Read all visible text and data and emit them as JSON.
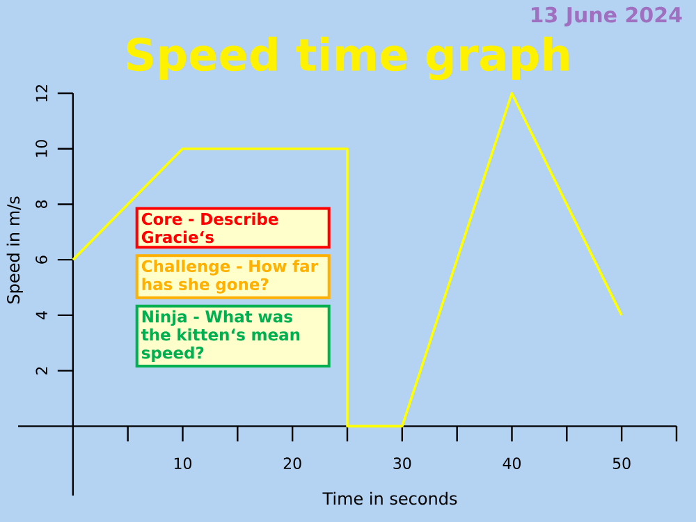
{
  "chart_data": {
    "type": "line",
    "title": "Speed time graph",
    "subtitle": "13 June 2024",
    "xlabel": "Time in seconds",
    "ylabel": "Speed in m/s",
    "x": [
      0,
      10,
      25,
      25,
      30,
      40,
      50
    ],
    "values": [
      6,
      10,
      10,
      0,
      0,
      12,
      4
    ],
    "color": "#ffff00",
    "marker": "none",
    "line_style": "solid",
    "xlim": [
      -5,
      55
    ],
    "ylim": [
      -2.5,
      12
    ],
    "xticks": [
      {
        "value": 5,
        "label": null
      },
      10,
      {
        "value": 15,
        "label": null
      },
      20,
      {
        "value": 25,
        "label": null
      },
      30,
      {
        "value": 35,
        "label": null
      },
      40,
      {
        "value": 45,
        "label": null
      },
      50,
      {
        "value": 55,
        "label": null
      }
    ],
    "yticks": [
      2,
      4,
      6,
      8,
      10,
      12
    ],
    "annotations": [
      "Core - Describe Gracie‘s",
      "Challenge - How far has she gone?",
      "Ninja - What was the kitten‘s mean speed?"
    ]
  }
}
